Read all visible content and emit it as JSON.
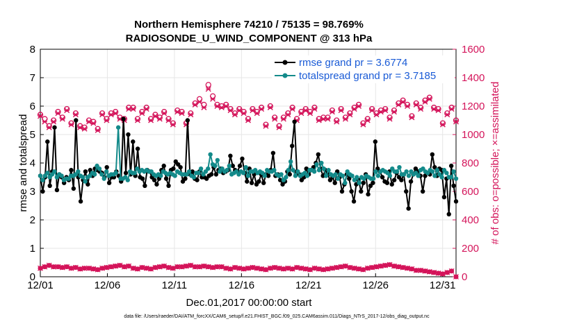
{
  "chart_data": {
    "type": "line",
    "title": "Northern Hemisphere 74210 / 75135 = 98.769%",
    "subtitle": "RADIOSONDE_U_WIND_COMPONENT @ 313 hPa",
    "xlabel": "Dec.01,2017 00:00:00 start",
    "ylabel_left": "rmse and totalspread",
    "ylabel_right": "# of obs: o=possible; ×=assimilated",
    "footnote": "data file: /Users/raeder/DAI/ATM_forcXX/CAM6_setup/f.e21.FHIST_BGC.f09_025.CAM6assim.011/Diags_NTrS_2017-12/obs_diag_output.nc",
    "xlim": [
      0,
      31
    ],
    "ylim_left": [
      0,
      8
    ],
    "ylim_right": [
      0,
      1600
    ],
    "x_ticks": [
      0,
      5,
      10,
      15,
      20,
      25,
      30
    ],
    "x_tick_labels": [
      "12/01",
      "12/06",
      "12/11",
      "12/16",
      "12/21",
      "12/26",
      "12/31"
    ],
    "y_ticks_left": [
      "0",
      "1",
      "2",
      "3",
      "4",
      "5",
      "6",
      "7",
      "8"
    ],
    "y_ticks_right": [
      "0",
      "200",
      "400",
      "600",
      "800",
      "1000",
      "1200",
      "1400",
      "1600"
    ],
    "colors": {
      "rmse": "#000000",
      "spread": "#138a8a",
      "obs": "#d4145a",
      "legend_text": "#1a5bd6",
      "grid": "#e6e6e6"
    },
    "legend": [
      {
        "name": "rmse grand pr = 3.6774",
        "series": "rmse"
      },
      {
        "name": "totalspread grand pr = 3.7185",
        "series": "spread"
      }
    ],
    "series": [
      {
        "name": "rmse",
        "axis": "left",
        "values": [
          3.55,
          3.0,
          3.5,
          4.75,
          3.2,
          3.7,
          5.25,
          3.05,
          3.6,
          3.5,
          3.3,
          3.5,
          3.4,
          3.75,
          3.1,
          5.5,
          3.5,
          2.65,
          3.4,
          3.7,
          3.25,
          3.75,
          3.55,
          3.8,
          3.75,
          3.7,
          3.65,
          3.5,
          3.85,
          3.3,
          3.5,
          3.5,
          3.7,
          3.55,
          3.35,
          5.55,
          3.65,
          5.0,
          3.6,
          4.75,
          3.55,
          4.5,
          3.5,
          3.45,
          3.2,
          3.75,
          3.7,
          3.5,
          3.4,
          3.25,
          3.45,
          3.75,
          3.9,
          3.45,
          3.2,
          3.75,
          3.8,
          4.05,
          3.95,
          3.85,
          3.35,
          3.45,
          5.5,
          3.6,
          3.7,
          3.45,
          3.4,
          3.7,
          3.5,
          3.5,
          3.45,
          3.55,
          3.6,
          3.85,
          3.6,
          3.75,
          3.8,
          3.65,
          3.7,
          3.75,
          4.25,
          3.9,
          3.75,
          3.7,
          3.9,
          4.15,
          3.65,
          3.35,
          3.8,
          3.3,
          3.6,
          3.25,
          3.35,
          3.6,
          3.3,
          3.6,
          3.55,
          3.75,
          4.35,
          3.55,
          3.6,
          3.4,
          3.25,
          3.35,
          3.7,
          3.6,
          4.6,
          5.45,
          3.7,
          3.6,
          3.4,
          3.5,
          3.8,
          3.6,
          3.75,
          3.85,
          4.0,
          4.3,
          3.8,
          3.55,
          3.75,
          3.6,
          3.4,
          3.5,
          3.3,
          3.7,
          3.5,
          3.0,
          3.25,
          3.6,
          3.45,
          3.0,
          2.65,
          3.25,
          3.4,
          3.0,
          3.3,
          3.6,
          2.9,
          3.2,
          3.3,
          4.75,
          3.8,
          3.7,
          3.5,
          3.35,
          3.3,
          3.7,
          3.25,
          3.4,
          3.65,
          3.5,
          3.4,
          3.6,
          3.0,
          2.4,
          3.35,
          3.6,
          3.8,
          3.7,
          3.55,
          3.0,
          3.55,
          3.65,
          3.6,
          4.3,
          3.85,
          3.55,
          3.8,
          3.75,
          2.8,
          3.45,
          2.2,
          3.9,
          3.2,
          2.65
        ]
      },
      {
        "name": "totalspread",
        "axis": "left",
        "values": [
          3.55,
          3.4,
          3.55,
          3.65,
          3.5,
          3.6,
          3.7,
          3.5,
          3.6,
          3.55,
          3.4,
          3.45,
          3.45,
          3.55,
          3.55,
          3.6,
          3.7,
          3.55,
          3.5,
          3.35,
          3.5,
          3.55,
          3.65,
          3.6,
          3.9,
          3.8,
          3.6,
          3.45,
          3.7,
          3.55,
          3.6,
          3.6,
          3.65,
          5.25,
          3.45,
          3.45,
          3.5,
          3.4,
          3.7,
          3.65,
          3.65,
          3.8,
          3.7,
          3.75,
          3.7,
          3.75,
          3.7,
          3.7,
          3.6,
          3.55,
          3.6,
          3.55,
          3.7,
          3.65,
          3.6,
          3.65,
          3.6,
          3.55,
          3.7,
          3.65,
          3.6,
          3.6,
          3.6,
          3.7,
          3.55,
          3.5,
          3.65,
          3.65,
          3.8,
          3.6,
          3.7,
          3.8,
          4.3,
          3.95,
          3.9,
          4.1,
          3.7,
          3.8,
          3.7,
          3.75,
          3.9,
          3.6,
          3.65,
          3.7,
          3.6,
          3.7,
          3.65,
          3.85,
          3.55,
          3.7,
          3.7,
          3.75,
          3.65,
          3.7,
          3.65,
          3.55,
          3.75,
          3.7,
          3.7,
          3.75,
          3.6,
          3.55,
          3.6,
          3.4,
          3.5,
          3.75,
          4.05,
          3.75,
          3.55,
          3.7,
          3.55,
          3.6,
          3.65,
          3.55,
          3.75,
          3.75,
          3.7,
          3.95,
          3.75,
          4.0,
          3.8,
          3.55,
          3.75,
          3.6,
          3.55,
          3.6,
          3.45,
          3.6,
          3.55,
          3.3,
          3.7,
          3.6,
          3.55,
          3.4,
          3.5,
          3.3,
          3.5,
          3.45,
          3.55,
          3.5,
          3.45,
          3.45,
          3.7,
          3.55,
          3.7,
          3.75,
          3.7,
          3.65,
          3.55,
          3.8,
          3.7,
          3.7,
          3.85,
          3.6,
          3.6,
          3.7,
          3.55,
          3.7,
          3.6,
          3.65,
          3.55,
          3.75,
          3.8,
          3.7,
          3.65,
          3.75,
          3.7,
          3.55,
          3.75,
          3.6,
          3.5,
          3.75,
          3.65,
          3.5,
          3.5,
          3.7,
          3.45
        ]
      },
      {
        "name": "possible obs",
        "axis": "right",
        "marker": "o",
        "values": [
          1140,
          1110,
          1060,
          1100,
          1160,
          1120,
          1180,
          1080,
          1150,
          1060,
          1050,
          1100,
          1090,
          1040,
          1150,
          1110,
          1150,
          1160,
          1120,
          1110,
          1190,
          1190,
          1110,
          1160,
          1190,
          1110,
          1140,
          1120,
          1160,
          1110,
          1080,
          1170,
          1160,
          1080,
          1150,
          1220,
          1250,
          1210,
          1350,
          1270,
          1210,
          1200,
          1210,
          1180,
          1150,
          1180,
          1160,
          1110,
          1180,
          1160,
          1190,
          1070,
          1200,
          1120,
          1060,
          1120,
          1150,
          1190,
          1110,
          1160,
          1180,
          1160,
          1190,
          1110,
          1120,
          1120,
          1170,
          1100,
          1180,
          1120,
          1150,
          1190,
          1210,
          1080,
          1110,
          1180,
          1150,
          1170,
          1180,
          1120,
          1170,
          1220,
          1240,
          1210,
          1130,
          1220,
          1190,
          1240,
          1260,
          1190,
          1180,
          1080,
          1150,
          1190,
          1100
        ]
      },
      {
        "name": "assimilated obs",
        "axis": "right",
        "marker": "x",
        "values": [
          1130,
          1090,
          1050,
          1090,
          1150,
          1110,
          1170,
          1070,
          1140,
          1050,
          1040,
          1090,
          1080,
          1030,
          1140,
          1100,
          1140,
          1150,
          1110,
          1100,
          1180,
          1180,
          1100,
          1150,
          1180,
          1100,
          1130,
          1110,
          1150,
          1100,
          1070,
          1160,
          1150,
          1070,
          1140,
          1210,
          1230,
          1190,
          1320,
          1250,
          1200,
          1190,
          1200,
          1170,
          1140,
          1170,
          1150,
          1100,
          1170,
          1150,
          1180,
          1060,
          1190,
          1110,
          1050,
          1110,
          1140,
          1180,
          1100,
          1150,
          1170,
          1150,
          1180,
          1100,
          1110,
          1110,
          1160,
          1090,
          1170,
          1110,
          1140,
          1180,
          1200,
          1070,
          1100,
          1170,
          1140,
          1160,
          1170,
          1110,
          1160,
          1210,
          1230,
          1200,
          1120,
          1210,
          1180,
          1230,
          1250,
          1180,
          1170,
          1070,
          1140,
          1180,
          1090
        ]
      },
      {
        "name": "rejected obs (bottom)",
        "axis": "right",
        "marker": "x",
        "values": [
          60,
          70,
          80,
          70,
          70,
          65,
          70,
          60,
          65,
          55,
          60,
          60,
          55,
          50,
          60,
          65,
          70,
          75,
          80,
          70,
          75,
          60,
          55,
          65,
          60,
          55,
          65,
          70,
          75,
          65,
          60,
          70,
          70,
          75,
          80,
          70,
          70,
          75,
          70,
          65,
          70,
          70,
          60,
          55,
          65,
          60,
          55,
          60,
          65,
          60,
          55,
          50,
          60,
          65,
          60,
          55,
          60,
          55,
          65,
          60,
          55,
          50,
          60,
          55,
          50,
          55,
          60,
          65,
          70,
          75,
          65,
          60,
          55,
          50,
          60,
          65,
          70,
          75,
          80,
          85,
          75,
          70,
          65,
          60,
          55,
          45,
          45,
          40,
          35,
          30,
          25,
          20,
          30,
          40,
          0
        ]
      }
    ]
  }
}
